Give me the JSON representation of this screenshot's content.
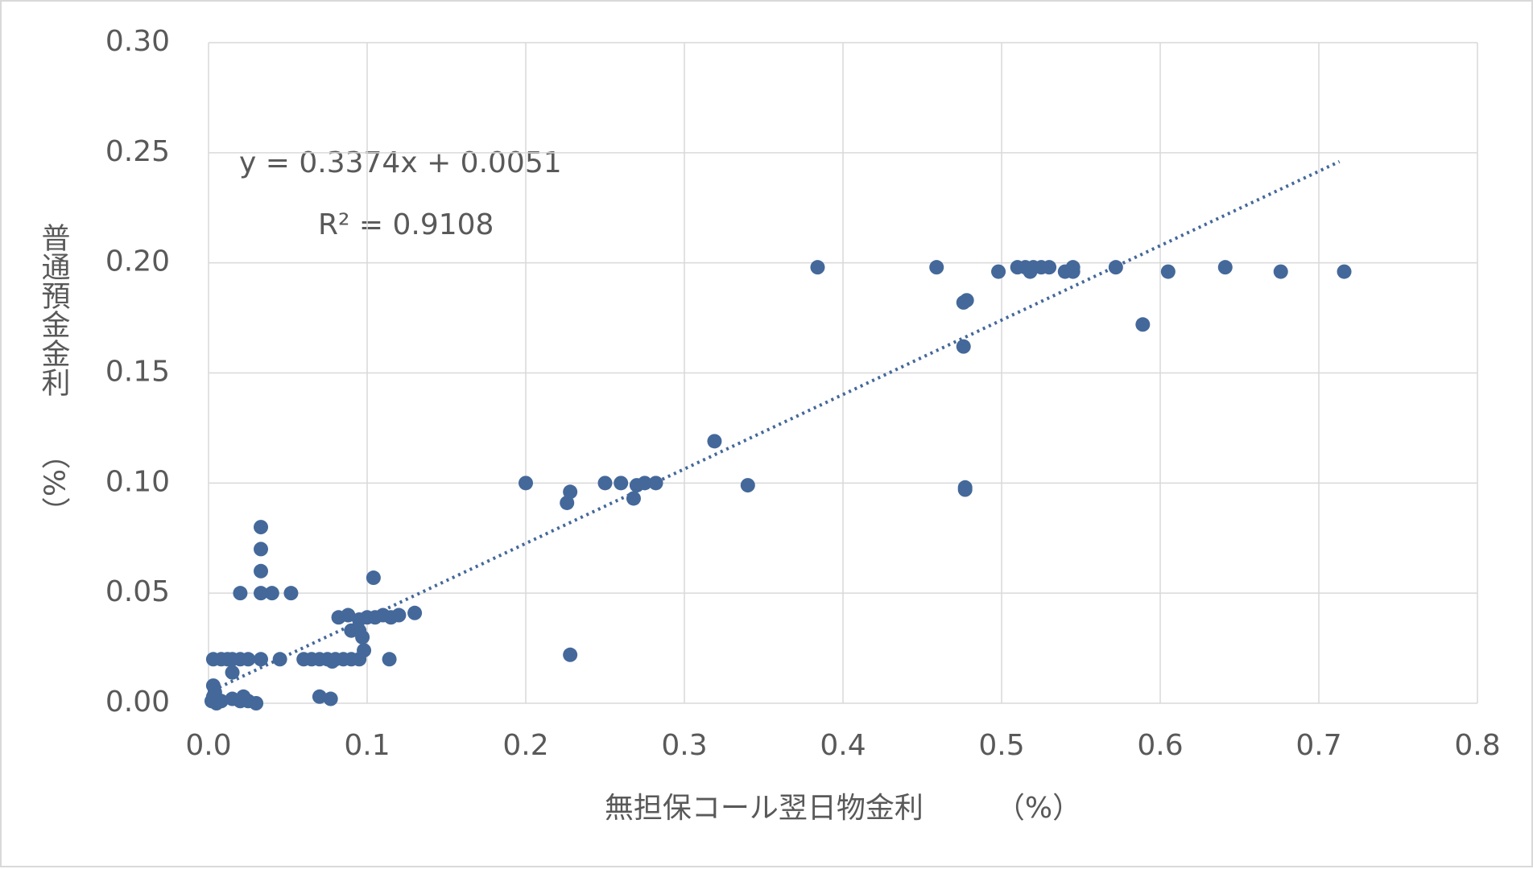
{
  "chart_data": {
    "type": "scatter",
    "x_label": "無担保コール翌日物金利　　　（%）",
    "y_label": "普通預金金利　　（%）",
    "annotations": [
      "y = 0.3374x + 0.0051",
      "R² = 0.9108"
    ],
    "color": "#44689a",
    "grid": true,
    "xlim": [
      0,
      0.8
    ],
    "ylim": [
      0,
      0.3
    ],
    "xticks": [
      {
        "value": 0,
        "label": "0.0"
      },
      0.1,
      0.2,
      0.3,
      0.4,
      0.5,
      0.6,
      0.7,
      0.8
    ],
    "yticks": [
      {
        "value": 0,
        "label": "0.00"
      },
      0.05,
      {
        "value": 0.1,
        "label": "0.10"
      },
      0.15,
      {
        "value": 0.2,
        "label": "0.20"
      },
      0.25,
      {
        "value": 0.3,
        "label": "0.30"
      }
    ],
    "trendline": {
      "x": [
        0.003,
        0.713
      ],
      "y": [
        0.006,
        0.246
      ]
    },
    "x": [
      0.003,
      0.008,
      0.012,
      0.015,
      0.02,
      0.025,
      0.002,
      0.003,
      0.004,
      0.003,
      0.005,
      0.008,
      0.015,
      0.02,
      0.022,
      0.025,
      0.03,
      0.015,
      0.07,
      0.077,
      0.033,
      0.033,
      0.033,
      0.033,
      0.02,
      0.04,
      0.052,
      0.033,
      0.045,
      0.06,
      0.065,
      0.07,
      0.075,
      0.08,
      0.085,
      0.09,
      0.095,
      0.078,
      0.082,
      0.088,
      0.095,
      0.1,
      0.105,
      0.11,
      0.115,
      0.12,
      0.13,
      0.09,
      0.095,
      0.097,
      0.098,
      0.104,
      0.114,
      0.2,
      0.226,
      0.228,
      0.228,
      0.25,
      0.26,
      0.268,
      0.27,
      0.275,
      0.282,
      0.319,
      0.34,
      0.384,
      0.459,
      0.476,
      0.476,
      0.478,
      0.477,
      0.477,
      0.498,
      0.51,
      0.515,
      0.518,
      0.52,
      0.525,
      0.53,
      0.54,
      0.545,
      0.545,
      0.572,
      0.589,
      0.605,
      0.641,
      0.676,
      0.716
    ],
    "y": [
      0.02,
      0.02,
      0.02,
      0.02,
      0.02,
      0.02,
      0.001,
      0.003,
      0.005,
      0.008,
      0.0,
      0.001,
      0.002,
      0.001,
      0.003,
      0.001,
      0.0,
      0.014,
      0.003,
      0.002,
      0.05,
      0.06,
      0.07,
      0.08,
      0.05,
      0.05,
      0.05,
      0.02,
      0.02,
      0.02,
      0.02,
      0.02,
      0.02,
      0.02,
      0.02,
      0.02,
      0.02,
      0.019,
      0.039,
      0.04,
      0.038,
      0.039,
      0.039,
      0.04,
      0.039,
      0.04,
      0.041,
      0.033,
      0.033,
      0.03,
      0.024,
      0.057,
      0.02,
      0.1,
      0.091,
      0.096,
      0.022,
      0.1,
      0.1,
      0.093,
      0.099,
      0.1,
      0.1,
      0.119,
      0.099,
      0.198,
      0.198,
      0.162,
      0.182,
      0.183,
      0.097,
      0.098,
      0.196,
      0.198,
      0.198,
      0.196,
      0.198,
      0.198,
      0.198,
      0.196,
      0.196,
      0.198,
      0.198,
      0.172,
      0.196,
      0.198,
      0.196,
      0.196
    ]
  }
}
